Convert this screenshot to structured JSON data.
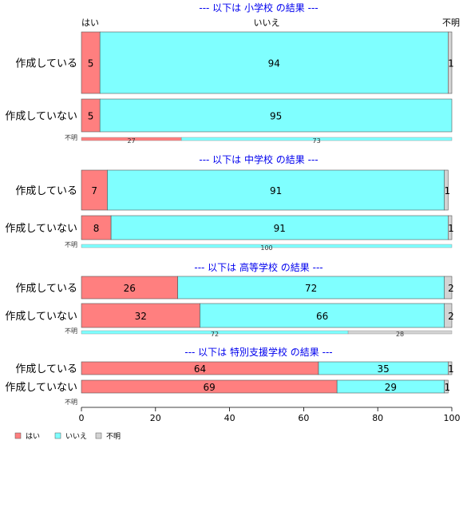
{
  "chart_data": {
    "type": "bar",
    "orientation": "horizontal",
    "stacked": "percent",
    "header_labels": [
      "はい",
      "いいえ",
      "不明"
    ],
    "xlim": [
      0,
      100
    ],
    "xticks": [
      "0",
      "20",
      "40",
      "60",
      "80",
      "100"
    ],
    "legend": {
      "placement": "bottom-left",
      "items": [
        {
          "label": "はい",
          "color": "#ff7f7f"
        },
        {
          "label": "いいえ",
          "color": "#7fffff"
        },
        {
          "label": "不明",
          "color": "#d3d3d3"
        }
      ]
    },
    "colors": {
      "yes": "#ff7f7f",
      "no": "#7fffff",
      "unknown": "#d3d3d3",
      "title": "#0000ee"
    },
    "panels": [
      {
        "title": "--- 以下は 小学校 の結果 ---",
        "rows": [
          {
            "label": "作成している",
            "values": [
              5,
              94,
              1
            ],
            "labels": [
              "5",
              "94",
              "1"
            ]
          },
          {
            "label": "作成していない",
            "values": [
              5,
              95,
              0
            ],
            "labels": [
              "5",
              "95",
              ""
            ]
          }
        ],
        "unknown_row": {
          "label": "不明",
          "values": [
            27,
            73,
            0
          ],
          "labels": [
            "27",
            "73",
            ""
          ]
        }
      },
      {
        "title": "--- 以下は 中学校 の結果 ---",
        "rows": [
          {
            "label": "作成している",
            "values": [
              7,
              91,
              1
            ],
            "labels": [
              "7",
              "91",
              "1"
            ]
          },
          {
            "label": "作成していない",
            "values": [
              8,
              91,
              1
            ],
            "labels": [
              "8",
              "91",
              "1"
            ]
          }
        ],
        "unknown_row": {
          "label": "不明",
          "values": [
            0,
            100,
            0
          ],
          "labels": [
            "",
            "100",
            ""
          ]
        }
      },
      {
        "title": "--- 以下は 高等学校 の結果 ---",
        "rows": [
          {
            "label": "作成している",
            "values": [
              26,
              72,
              2
            ],
            "labels": [
              "26",
              "72",
              "2"
            ]
          },
          {
            "label": "作成していない",
            "values": [
              32,
              66,
              2
            ],
            "labels": [
              "32",
              "66",
              "2"
            ]
          }
        ],
        "unknown_row": {
          "label": "不明",
          "values": [
            0,
            72,
            28
          ],
          "labels": [
            "",
            "72",
            "28"
          ]
        }
      },
      {
        "title": "--- 以下は 特別支援学校 の結果 ---",
        "rows": [
          {
            "label": "作成している",
            "values": [
              64,
              35,
              1
            ],
            "labels": [
              "64",
              "35",
              "1"
            ]
          },
          {
            "label": "作成していない",
            "values": [
              69,
              29,
              1
            ],
            "labels": [
              "69",
              "29",
              "1"
            ]
          }
        ],
        "unknown_row": {
          "label": "不明",
          "values": [
            0,
            0,
            0
          ],
          "labels": [
            "",
            "",
            ""
          ]
        }
      }
    ]
  }
}
